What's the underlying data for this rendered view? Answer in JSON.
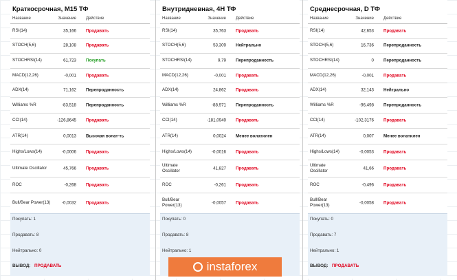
{
  "panels": [
    {
      "title": "Краткосрочная, M15 ТФ",
      "header": [
        "Название",
        "Значение",
        "Действие"
      ],
      "rows": [
        {
          "name": "RSI(14)",
          "value": "35,166",
          "action": "Продавать",
          "action_color": "#e0001b"
        },
        {
          "name": "STOCH(5,6)",
          "value": "28,108",
          "action": "Продавать",
          "action_color": "#e0001b"
        },
        {
          "name": "STOCHRSI(14)",
          "value": "61,723",
          "action": "Покупать",
          "action_color": "#1a9a1a"
        },
        {
          "name": "MACD(12,26)",
          "value": "-0,001",
          "action": "Продавать",
          "action_color": "#e0001b"
        },
        {
          "name": "ADX(14)",
          "value": "71,162",
          "action": "Перепроданность",
          "action_color": "#222222"
        },
        {
          "name": "Williams %R",
          "value": "-83,518",
          "action": "Перепроданность",
          "action_color": "#222222"
        },
        {
          "name": "CCI(14)",
          "value": "-126,8645",
          "action": "Продавать",
          "action_color": "#e0001b"
        },
        {
          "name": "ATR(14)",
          "value": "0,0013",
          "action": "Высокая волат-ть",
          "action_color": "#222222"
        },
        {
          "name": "Highs/Lows(14)",
          "value": "-0,0006",
          "action": "Продавать",
          "action_color": "#e0001b"
        },
        {
          "name": "Ultimate Oscillator",
          "value": "45,766",
          "action": "Продавать",
          "action_color": "#e0001b"
        },
        {
          "name": "ROC",
          "value": "-0,268",
          "action": "Продавать",
          "action_color": "#e0001b"
        },
        {
          "name": "Bull/Bear Power(13)",
          "value": "-0,0032",
          "action": "Продавать",
          "action_color": "#e0001b"
        }
      ],
      "summary": [
        "Покупать: 1",
        "Продавать: 8",
        "Нейтрально: 0"
      ],
      "conclusion_label": "ВЫВОД:",
      "conclusion": "ПРОДАВАТЬ"
    },
    {
      "title": "Внутридневная, 4H ТФ",
      "header": [
        "Название",
        "Значение",
        "Действие"
      ],
      "rows": [
        {
          "name": "RSI(14)",
          "value": "35,763",
          "action": "Продавать",
          "action_color": "#e0001b"
        },
        {
          "name": "STOCH(5,6)",
          "value": "53,309",
          "action": "Нейтрально",
          "action_color": "#222222"
        },
        {
          "name": "STOCHRSI(14)",
          "value": "9,79",
          "action": "Перепроданность",
          "action_color": "#222222"
        },
        {
          "name": "MACD(12,26)",
          "value": "-0,001",
          "action": "Продавать",
          "action_color": "#e0001b"
        },
        {
          "name": "ADX(14)",
          "value": "24,862",
          "action": "Продавать",
          "action_color": "#e0001b"
        },
        {
          "name": "Williams %R",
          "value": "-88,971",
          "action": "Перепроданность",
          "action_color": "#222222"
        },
        {
          "name": "CCI(14)",
          "value": "-181,0949",
          "action": "Продавать",
          "action_color": "#e0001b"
        },
        {
          "name": "ATR(14)",
          "value": "0,0024",
          "action": "Менее волатилен",
          "action_color": "#222222"
        },
        {
          "name": "Highs/Lows(14)",
          "value": "-0,0016",
          "action": "Продавать",
          "action_color": "#e0001b"
        },
        {
          "name": "Ultimate Oscillator",
          "value": "41,827",
          "action": "Продавать",
          "action_color": "#e0001b"
        },
        {
          "name": "ROC",
          "value": "-0,261",
          "action": "Продавать",
          "action_color": "#e0001b"
        },
        {
          "name": "Bull/Bear Power(13)",
          "value": "-0,0057",
          "action": "Продавать",
          "action_color": "#e0001b"
        }
      ],
      "summary": [
        "Покупать: 0",
        "Продавать: 8",
        "Нейтрально: 1"
      ]
    },
    {
      "title": "Среднесрочная, D ТФ",
      "header": [
        "Название",
        "Значение",
        "Действие"
      ],
      "rows": [
        {
          "name": "RSI(14)",
          "value": "42,653",
          "action": "Продавать",
          "action_color": "#e0001b"
        },
        {
          "name": "STOCH(5,6)",
          "value": "16,736",
          "action": "Перепроданность",
          "action_color": "#222222"
        },
        {
          "name": "STOCHRSI(14)",
          "value": "0",
          "action": "Перепроданность",
          "action_color": "#222222"
        },
        {
          "name": "MACD(12,26)",
          "value": "-0,001",
          "action": "Продавать",
          "action_color": "#e0001b"
        },
        {
          "name": "ADX(14)",
          "value": "32,143",
          "action": "Нейтрально",
          "action_color": "#222222"
        },
        {
          "name": "Williams %R",
          "value": "-96,498",
          "action": "Перепроданность",
          "action_color": "#222222"
        },
        {
          "name": "CCI(14)",
          "value": "-102,3176",
          "action": "Продавать",
          "action_color": "#e0001b"
        },
        {
          "name": "ATR(14)",
          "value": "0,007",
          "action": "Менее волатилен",
          "action_color": "#222222"
        },
        {
          "name": "Highs/Lows(14)",
          "value": "-0,0053",
          "action": "Продавать",
          "action_color": "#e0001b"
        },
        {
          "name": "Ultimate Oscillator",
          "value": "41,66",
          "action": "Продавать",
          "action_color": "#e0001b"
        },
        {
          "name": "ROC",
          "value": "-0,496",
          "action": "Продавать",
          "action_color": "#e0001b"
        },
        {
          "name": "Bull/Bear Power(13)",
          "value": "-0,0058",
          "action": "Продавать",
          "action_color": "#e0001b"
        }
      ],
      "summary": [
        "Покупать: 0",
        "Продавать: 7",
        "Нейтрально: 1"
      ],
      "conclusion_label": "ВЫВОД:",
      "conclusion": "ПРОДАВАТЬ"
    }
  ],
  "watermark": "instaforex"
}
